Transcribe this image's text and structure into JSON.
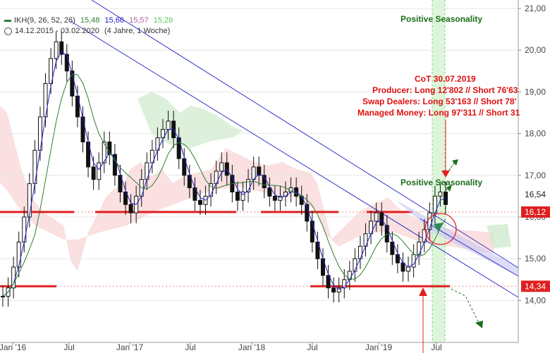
{
  "legend": {
    "indicator": "IKH(9, 26, 52, 26)",
    "values": [
      "15,48",
      "15,66",
      "15,57",
      "15,28"
    ],
    "value_colors": [
      "#2e7d32",
      "#2222cc",
      "#b05aa0",
      "#55cc55"
    ],
    "period": "14.12.2015 - 03.02.2020",
    "span": "(4 Jahre, 1 Woche)"
  },
  "annotations": {
    "seasonality_top": "Positive Seasonality",
    "seasonality_mid": "Positive Seasonality",
    "cot_lines": [
      "CoT 30.07.2019",
      "Producer: Long 12'802 // Short 76'63",
      "Swap Dealers: Long 53'163 // Short 78'",
      "Managed Money: Long 97'311 // Short 31"
    ]
  },
  "chart_data": {
    "type": "candlestick",
    "x_tick_labels": [
      "Jan '16",
      "Jul",
      "Jan '17",
      "Jul",
      "Jan '18",
      "Jul",
      "Jan '19",
      "Jul"
    ],
    "y_ticks": [
      "21,00",
      "20,00",
      "19,00",
      "18,00",
      "17,00",
      "16,00",
      "15,00",
      "14,00"
    ],
    "ylim": [
      13.3,
      21.2
    ],
    "price_labels": [
      {
        "value": 16.54,
        "text": "16,54",
        "style": "plain"
      },
      {
        "value": 16.12,
        "text": "16,12",
        "style": "red"
      },
      {
        "value": 14.34,
        "text": "14,34",
        "style": "red"
      }
    ],
    "support_resistance": [
      {
        "value": 16.12,
        "ranges": [
          [
            "Jan '16",
            "Jul"
          ],
          [
            "Jan '17",
            "Jul"
          ],
          [
            "Jul",
            "Jan '19"
          ],
          [
            "Jan '19",
            "Jul"
          ]
        ]
      },
      {
        "value": 14.34,
        "ranges": [
          [
            "Jan '16",
            "Jul"
          ],
          [
            "Jul",
            "Jul"
          ]
        ]
      }
    ],
    "colors": {
      "candle": "#111111",
      "tenkan": "#2222cc",
      "kijun": "#2e7d32",
      "trendline": "#3333cc",
      "support": "#e02020",
      "cloud_bear": "#f5c6c6",
      "cloud_bull": "#cfeacc",
      "seasonality": "#d7f5d3"
    },
    "candles_close": [
      14.1,
      14.3,
      14.8,
      15.4,
      16.0,
      16.8,
      17.6,
      18.4,
      19.2,
      19.8,
      20.2,
      19.9,
      19.5,
      18.9,
      18.4,
      17.8,
      17.2,
      16.9,
      17.3,
      17.8,
      17.5,
      17.0,
      16.6,
      16.3,
      16.1,
      16.5,
      16.9,
      17.3,
      17.6,
      17.9,
      18.1,
      18.3,
      17.9,
      17.4,
      17.0,
      16.7,
      16.4,
      16.3,
      16.5,
      16.8,
      17.1,
      17.3,
      17.0,
      16.6,
      16.4,
      16.6,
      16.9,
      17.2,
      17.0,
      16.7,
      16.5,
      16.4,
      16.5,
      16.6,
      16.7,
      16.5,
      16.3,
      15.9,
      15.4,
      15.0,
      14.6,
      14.3,
      14.2,
      14.3,
      14.5,
      14.7,
      15.0,
      15.3,
      15.6,
      15.9,
      16.1,
      15.8,
      15.4,
      15.1,
      14.9,
      14.7,
      14.8,
      15.1,
      15.4,
      15.7,
      16.1,
      16.5,
      16.6,
      16.3
    ]
  }
}
